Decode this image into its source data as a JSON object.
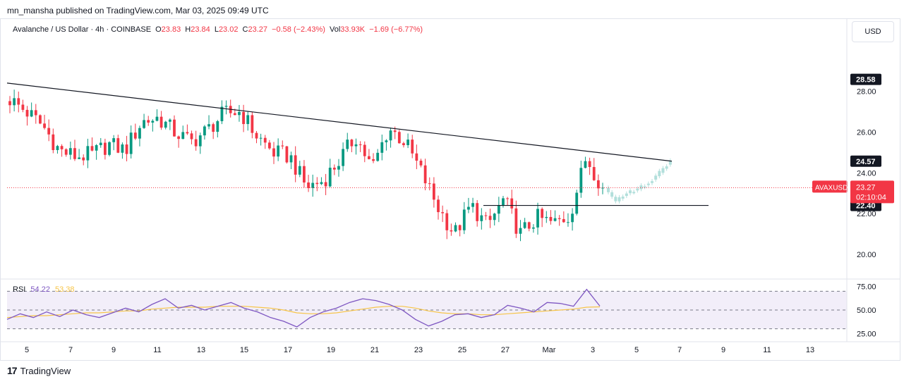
{
  "header": {
    "published": "mn_mansha published on TradingView.com, Mar 03, 2025 09:49 UTC"
  },
  "legend": {
    "symbol": "Avalanche / US Dollar · 4h · COINBASE",
    "o_label": "O",
    "o": "23.83",
    "h_label": "H",
    "h": "23.84",
    "l_label": "L",
    "l": "23.02",
    "c_label": "C",
    "c": "23.27",
    "change": "−0.58 (−2.43%)",
    "vol_label": "Vol",
    "vol": "33.93K",
    "vol_change": "−1.69 (−6.77%)"
  },
  "currency_button": "USD",
  "rsi": {
    "name": "RSI",
    "value": "54.22",
    "ma": "53.38"
  },
  "brand": {
    "logo": "17",
    "name": "TradingView"
  },
  "colors": {
    "up": "#089981",
    "down": "#f23645",
    "projection": "#b2dfdb",
    "rsi": "#7e57c2",
    "rsi_ma": "#f7c548"
  },
  "chart_data": {
    "type": "candlestick",
    "symbol": "AVAXUSD",
    "price_axis": {
      "ticks": [
        "28.00",
        "26.00",
        "24.00",
        "22.00",
        "20.00"
      ],
      "ylim": [
        19.0,
        30.4
      ]
    },
    "x_axis": {
      "ticks": [
        "5",
        "7",
        "9",
        "11",
        "13",
        "15",
        "17",
        "19",
        "21",
        "23",
        "25",
        "27",
        "Mar",
        "3",
        "5",
        "7",
        "9",
        "11",
        "13"
      ]
    },
    "price_labels": [
      {
        "text": "28.58",
        "kind": "black"
      },
      {
        "text": "24.57",
        "kind": "black"
      },
      {
        "text": "22.40",
        "kind": "black"
      },
      {
        "text": "AVAXUSD",
        "kind": "current"
      },
      {
        "text": "23.27",
        "kind": "current"
      },
      {
        "text": "02:10:04",
        "kind": "current"
      }
    ],
    "current_price": 23.27,
    "trendline": {
      "start_price": 28.4,
      "end_price": 24.57
    },
    "support_line": 22.4,
    "anchors_up_to_now": [
      [
        27.6,
        27.6
      ],
      [
        27.0,
        27.0
      ],
      [
        26.3,
        26.3
      ],
      [
        25.1,
        25.1
      ],
      [
        24.8,
        24.8
      ],
      [
        24.9,
        24.9
      ],
      [
        25.4,
        25.4
      ],
      [
        25.1,
        25.1
      ],
      [
        26.5,
        26.5
      ],
      [
        26.7,
        26.7
      ],
      [
        26.0,
        26.0
      ],
      [
        25.5,
        25.5
      ],
      [
        26.1,
        26.1
      ],
      [
        26.9,
        26.9
      ],
      [
        27.0,
        27.0
      ],
      [
        25.8,
        25.8
      ],
      [
        25.0,
        25.0
      ],
      [
        24.8,
        24.8
      ],
      [
        23.3,
        23.3
      ],
      [
        23.6,
        23.6
      ],
      [
        24.6,
        24.6
      ],
      [
        25.8,
        25.8
      ],
      [
        24.2,
        24.2
      ],
      [
        26.2,
        26.2
      ],
      [
        25.5,
        25.5
      ],
      [
        24.0,
        24.0
      ],
      [
        22.3,
        22.3
      ],
      [
        21.0,
        21.0
      ],
      [
        22.4,
        22.4
      ],
      [
        21.4,
        21.4
      ],
      [
        22.7,
        22.7
      ],
      [
        21.0,
        21.0
      ],
      [
        21.8,
        21.8
      ],
      [
        21.5,
        21.5
      ],
      [
        21.9,
        21.9
      ],
      [
        24.8,
        24.8
      ],
      [
        23.27,
        23.27
      ]
    ],
    "projection": [
      23.27,
      22.6,
      23.0,
      23.2,
      23.5,
      24.0,
      24.6
    ],
    "rsi": {
      "axis_ticks": [
        "75.00",
        "50.00",
        "25.00"
      ],
      "ylim": [
        20,
        80
      ],
      "band": [
        30,
        70
      ],
      "values": [
        40,
        46,
        42,
        48,
        43,
        50,
        45,
        42,
        47,
        52,
        48,
        56,
        62,
        52,
        55,
        50,
        54,
        58,
        52,
        48,
        42,
        38,
        32,
        42,
        48,
        52,
        58,
        62,
        60,
        56,
        50,
        40,
        33,
        38,
        45,
        46,
        42,
        45,
        55,
        52,
        48,
        58,
        57,
        54,
        72,
        54.22
      ],
      "ma": [
        42,
        43,
        44,
        44,
        45,
        46,
        47,
        47,
        48,
        49,
        49,
        51,
        52,
        53,
        53,
        53,
        54,
        54,
        54,
        53,
        52,
        50,
        47,
        46,
        46,
        47,
        49,
        51,
        53,
        54,
        54,
        52,
        49,
        47,
        46,
        46,
        45,
        45,
        46,
        47,
        48,
        49,
        50,
        51,
        53,
        53.38
      ]
    }
  }
}
